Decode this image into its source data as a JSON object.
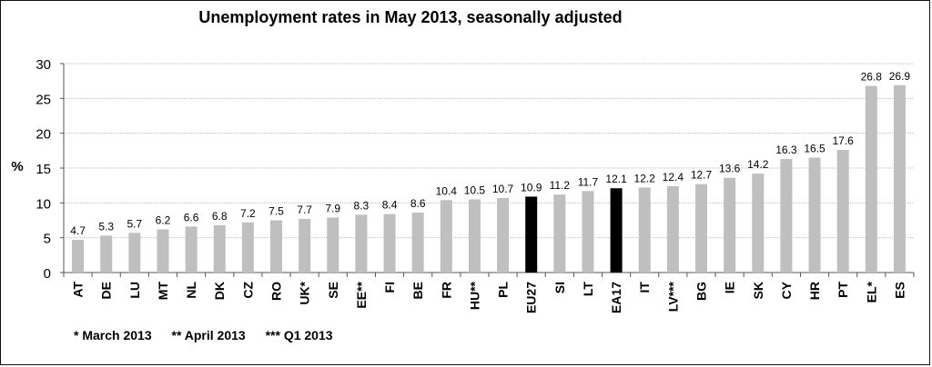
{
  "chart_data": {
    "type": "bar",
    "title": "Unemployment rates in May 2013, seasonally adjusted",
    "ylabel": "%",
    "xlabel": "",
    "ylim": [
      0,
      30
    ],
    "yticks": [
      0,
      5,
      10,
      15,
      20,
      25,
      30
    ],
    "grid": true,
    "legend": "none",
    "categories": [
      "AT",
      "DE",
      "LU",
      "MT",
      "NL",
      "DK",
      "CZ",
      "RO",
      "UK*",
      "SE",
      "EE**",
      "FI",
      "BE",
      "FR",
      "HU**",
      "PL",
      "EU27",
      "SI",
      "LT",
      "EA17",
      "IT",
      "LV***",
      "BG",
      "IE",
      "SK",
      "CY",
      "HR",
      "PT",
      "EL*",
      "ES"
    ],
    "values": [
      4.7,
      5.3,
      5.7,
      6.2,
      6.6,
      6.8,
      7.2,
      7.5,
      7.7,
      7.9,
      8.3,
      8.4,
      8.6,
      10.4,
      10.5,
      10.7,
      10.9,
      11.2,
      11.7,
      12.1,
      12.2,
      12.4,
      12.7,
      13.6,
      14.2,
      16.3,
      16.5,
      17.6,
      26.8,
      26.9
    ],
    "value_labels": [
      "4.7",
      "5.3",
      "5.7",
      "6.2",
      "6.6",
      "6.8",
      "7.2",
      "7.5",
      "7.7",
      "7.9",
      "8.3",
      "8.4",
      "8.6",
      "10.4",
      "10.5",
      "10.7",
      "10.9",
      "11.2",
      "11.7",
      "12.1",
      "12.2",
      "12.4",
      "12.7",
      "13.6",
      "14.2",
      "16.3",
      "16.5",
      "17.6",
      "26.8",
      "26.9"
    ],
    "highlight_categories": [
      "EU27",
      "EA17"
    ],
    "colors": {
      "bar": "#bfbfbf",
      "highlight": "#000000",
      "grid": "#bdbdbd",
      "axis": "#555555"
    },
    "footnotes": [
      "* March 2013",
      "** April 2013",
      "*** Q1 2013"
    ]
  }
}
